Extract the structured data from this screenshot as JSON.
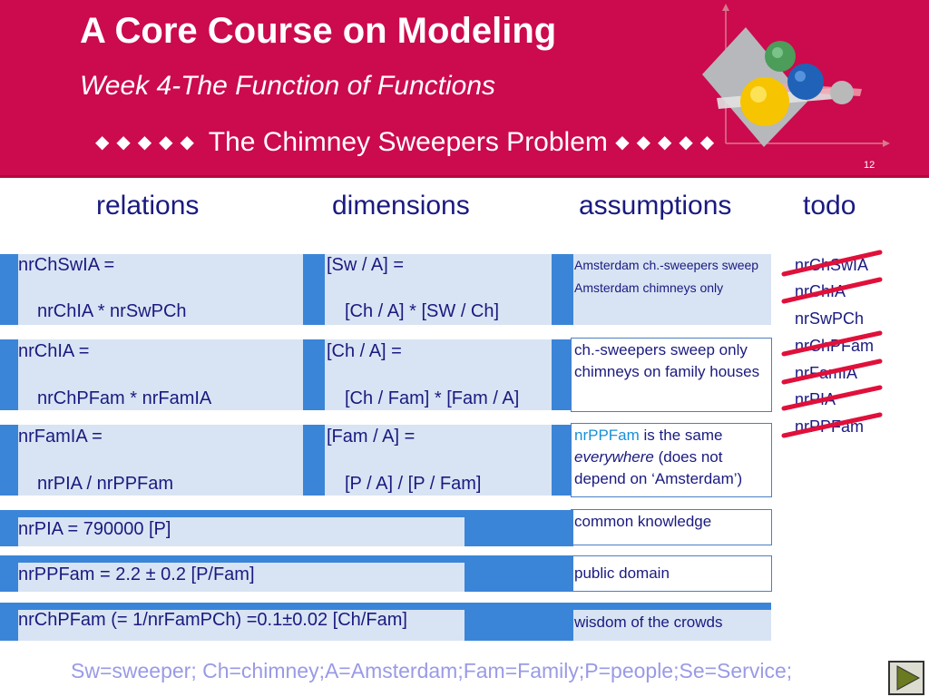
{
  "header": {
    "title": "A Core Course on Modeling",
    "subtitle": "Week 4-The Function of Functions",
    "banner_text": "The Chimney Sweepers Problem",
    "banner_diamonds": "◆◆◆◆◆",
    "slide_number": "12"
  },
  "columns": {
    "relations": "relations",
    "dimensions": "dimensions",
    "assumptions": "assumptions",
    "todo": "todo"
  },
  "rows": [
    {
      "rel1": "nrChSwIA =",
      "rel2": "nrChIA * nrSwPCh",
      "dim1": "[Sw / A] =",
      "dim2": "[Ch / A] * [SW / Ch]",
      "assumption": "Amsterdam ch.-sweepers sweep Amsterdam chimneys only"
    },
    {
      "rel1": "nrChIA =",
      "rel2": "nrChPFam * nrFamIA",
      "dim1": "[Ch / A] =",
      "dim2": "[Ch / Fam] * [Fam / A]",
      "assumption": "ch.-sweepers sweep only chimneys on family houses"
    },
    {
      "rel1": "nrFamIA =",
      "rel2": "nrPIA / nrPPFam",
      "dim1": "[Fam / A] =",
      "dim2": "[P / A] / [P / Fam]",
      "assumption_highlight": "nrPPFam",
      "assumption_a": " is the same ",
      "assumption_b": "everywhere",
      "assumption_c": " (does not depend on ‘Amsterdam’)"
    }
  ],
  "facts": [
    {
      "relation": "nrPIA = 790000 [P]",
      "assumption": "common knowledge"
    },
    {
      "relation": "nrPPFam = 2.2 ± 0.2 [P/Fam]",
      "assumption": "public domain"
    },
    {
      "relation": "nrChPFam (= 1/nrFamPCh) =0.1±0.02 [Ch/Fam]",
      "assumption": "wisdom of the crowds"
    }
  ],
  "todo": [
    {
      "label": "nrChSwIA",
      "struck": true
    },
    {
      "label": "nrChIA",
      "struck": true
    },
    {
      "label": "nrSwPCh",
      "struck": false
    },
    {
      "label": "nrChPFam",
      "struck": true
    },
    {
      "label": "nrFamIA",
      "struck": true
    },
    {
      "label": "nrPIA",
      "struck": true
    },
    {
      "label": "nrPPFam",
      "struck": true
    }
  ],
  "legend": "Sw=sweeper; Ch=chimney;A=Amsterdam;Fam=Family;P=people;Se=Service;",
  "colors": {
    "header": "#cc0a4e",
    "text": "#1a1a80",
    "tab": "#3a85d8",
    "cell": "#d8e4f3",
    "strike": "#e0103a",
    "legend": "#9a9ae6",
    "highlight": "#1a8fd8"
  },
  "icons": {
    "logo": "modeling-spheres-logo",
    "next": "play-triangle-icon"
  }
}
